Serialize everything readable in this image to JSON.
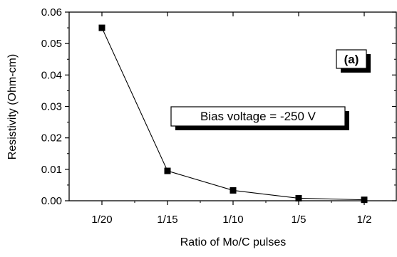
{
  "chart_data": {
    "type": "line",
    "title": "",
    "xlabel": "Ratio of Mo/C pulses",
    "ylabel": "Resistivity (Ohm-cm)",
    "categories": [
      "1/20",
      "1/15",
      "1/10",
      "1/5",
      "1/2"
    ],
    "series": [
      {
        "name": "",
        "values": [
          0.055,
          0.0095,
          0.0033,
          0.0008,
          0.0003
        ]
      }
    ],
    "ylim": [
      0.0,
      0.06
    ],
    "yticks": [
      "0.00",
      "0.01",
      "0.02",
      "0.03",
      "0.04",
      "0.05",
      "0.06"
    ],
    "grid": false,
    "legend": "none",
    "marker": "square",
    "annotations": {
      "panel_label": "(a)",
      "bias_label": "Bias voltage = -250 V"
    }
  }
}
